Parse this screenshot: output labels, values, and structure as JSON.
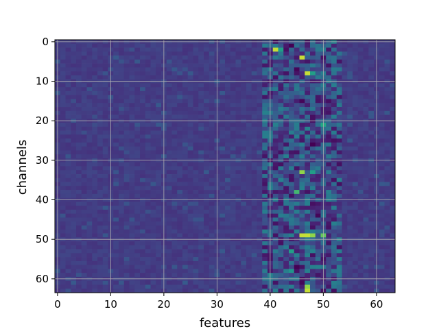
{
  "chart_data": {
    "type": "heatmap",
    "title": "",
    "xlabel": "features",
    "ylabel": "channels",
    "xlim": [
      0,
      63
    ],
    "ylim": [
      0,
      63
    ],
    "y_inverted": true,
    "x_ticks": [
      "0",
      "10",
      "20",
      "30",
      "40",
      "50",
      "60"
    ],
    "y_ticks": [
      "0",
      "10",
      "20",
      "30",
      "40",
      "50",
      "60"
    ],
    "grid": true,
    "colormap": "viridis",
    "n_rows": 64,
    "n_cols": 64,
    "background_value": 0.22,
    "band_cols": [
      39,
      53
    ],
    "hotspots": [
      {
        "row": 2,
        "col": 41,
        "value": 0.95
      },
      {
        "row": 2,
        "col": 42,
        "value": 0.7
      },
      {
        "row": 4,
        "col": 46,
        "value": 0.95
      },
      {
        "row": 8,
        "col": 47,
        "value": 0.95
      },
      {
        "row": 8,
        "col": 48,
        "value": 0.7
      },
      {
        "row": 21,
        "col": 50,
        "value": 0.75
      },
      {
        "row": 33,
        "col": 46,
        "value": 0.9
      },
      {
        "row": 33,
        "col": 48,
        "value": 0.7
      },
      {
        "row": 38,
        "col": 45,
        "value": 0.8
      },
      {
        "row": 49,
        "col": 46,
        "value": 0.95
      },
      {
        "row": 49,
        "col": 47,
        "value": 0.95
      },
      {
        "row": 49,
        "col": 48,
        "value": 0.9
      },
      {
        "row": 49,
        "col": 50,
        "value": 0.85
      },
      {
        "row": 53,
        "col": 44,
        "value": 0.7
      },
      {
        "row": 58,
        "col": 44,
        "value": 0.65
      },
      {
        "row": 62,
        "col": 47,
        "value": 0.9
      },
      {
        "row": 63,
        "col": 47,
        "value": 0.95
      }
    ],
    "lowspots": [
      {
        "row": 1,
        "col": 44,
        "value": 0.0
      },
      {
        "row": 7,
        "col": 45,
        "value": 0.02
      },
      {
        "row": 15,
        "col": 46,
        "value": 0.02
      },
      {
        "row": 26,
        "col": 48,
        "value": 0.0
      },
      {
        "row": 44,
        "col": 49,
        "value": 0.02
      },
      {
        "row": 57,
        "col": 45,
        "value": 0.0
      },
      {
        "row": 61,
        "col": 46,
        "value": 0.02
      }
    ]
  }
}
